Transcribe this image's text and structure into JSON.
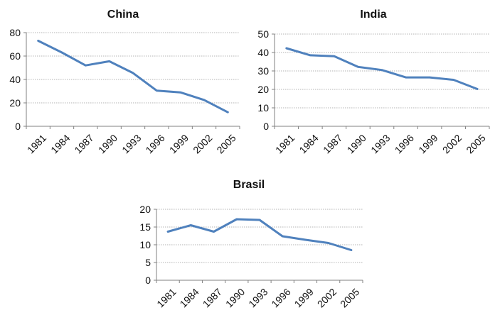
{
  "colors": {
    "line": "#4f81bd",
    "axis": "#808080",
    "grid": "#9a9a9a",
    "text": "#111111"
  },
  "chart_data": [
    {
      "type": "line",
      "title": "China",
      "xlabel": "",
      "ylabel": "",
      "categories": [
        "1981",
        "1984",
        "1987",
        "1990",
        "1993",
        "1996",
        "1999",
        "2002",
        "2005"
      ],
      "values": [
        73,
        63,
        52,
        55.5,
        45.5,
        30.5,
        29,
        22.5,
        12
      ],
      "ylim": [
        0,
        80
      ],
      "yticks": [
        0,
        20,
        40,
        60,
        80
      ],
      "grid": true
    },
    {
      "type": "line",
      "title": "India",
      "xlabel": "",
      "ylabel": "",
      "categories": [
        "1981",
        "1984",
        "1987",
        "1990",
        "1993",
        "1996",
        "1999",
        "2002",
        "2005"
      ],
      "values": [
        42.3,
        38.5,
        38,
        32.2,
        30.5,
        26.5,
        26.5,
        25.2,
        20.2
      ],
      "ylim": [
        0,
        50
      ],
      "yticks": [
        0,
        10,
        20,
        30,
        40,
        50
      ],
      "grid": true
    },
    {
      "type": "line",
      "title": "Brasil",
      "xlabel": "",
      "ylabel": "",
      "categories": [
        "1981",
        "1984",
        "1987",
        "1990",
        "1993",
        "1996",
        "1999",
        "2002",
        "2005"
      ],
      "values": [
        13.7,
        15.5,
        13.7,
        17.2,
        17,
        12.4,
        11.4,
        10.5,
        8.5
      ],
      "ylim": [
        0,
        20
      ],
      "yticks": [
        0,
        5,
        10,
        15,
        20
      ],
      "grid": true
    }
  ]
}
